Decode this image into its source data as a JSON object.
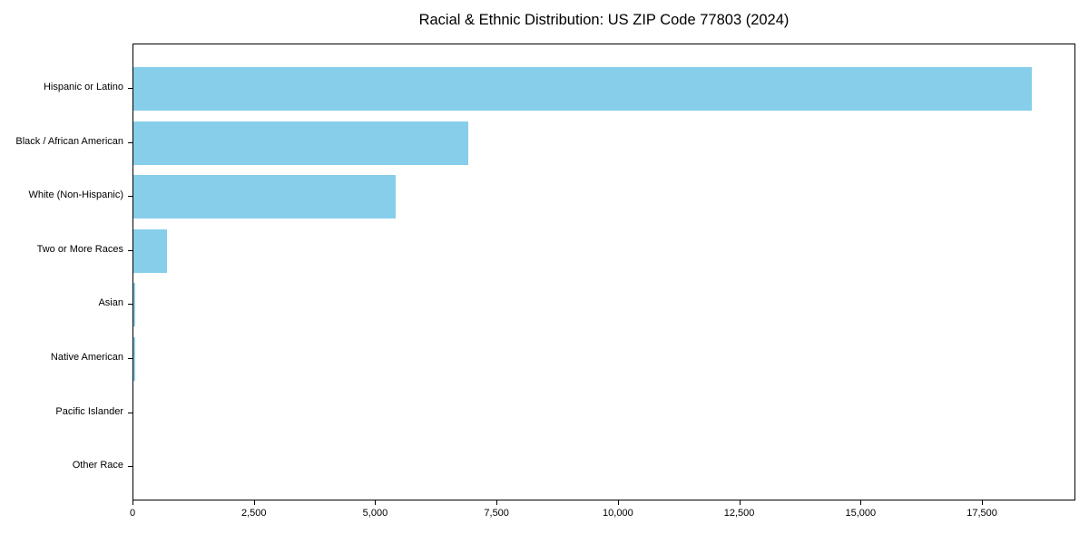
{
  "figure": {
    "background_color": "#ffffff",
    "spine_color": "#000000",
    "text_color": "#000000"
  },
  "chart_data": {
    "type": "bar",
    "orientation": "horizontal",
    "title": "Racial & Ethnic Distribution: US ZIP Code 77803 (2024)",
    "xlabel": "",
    "ylabel": "",
    "categories": [
      "Hispanic or Latino",
      "Black / African American",
      "White (Non-Hispanic)",
      "Two or More Races",
      "Asian",
      "Native American",
      "Pacific Islander",
      "Other Race"
    ],
    "values": [
      18500,
      6900,
      5400,
      700,
      40,
      30,
      0,
      0
    ],
    "bar_color": "#87CEEB",
    "xlim": [
      0,
      19425
    ],
    "x_ticks": [
      0,
      2500,
      5000,
      7500,
      10000,
      12500,
      15000,
      17500
    ],
    "x_tick_labels": [
      "0",
      "2,500",
      "5,000",
      "7,500",
      "10,000",
      "12,500",
      "15,000",
      "17,500"
    ],
    "grid": false,
    "legend": false
  }
}
